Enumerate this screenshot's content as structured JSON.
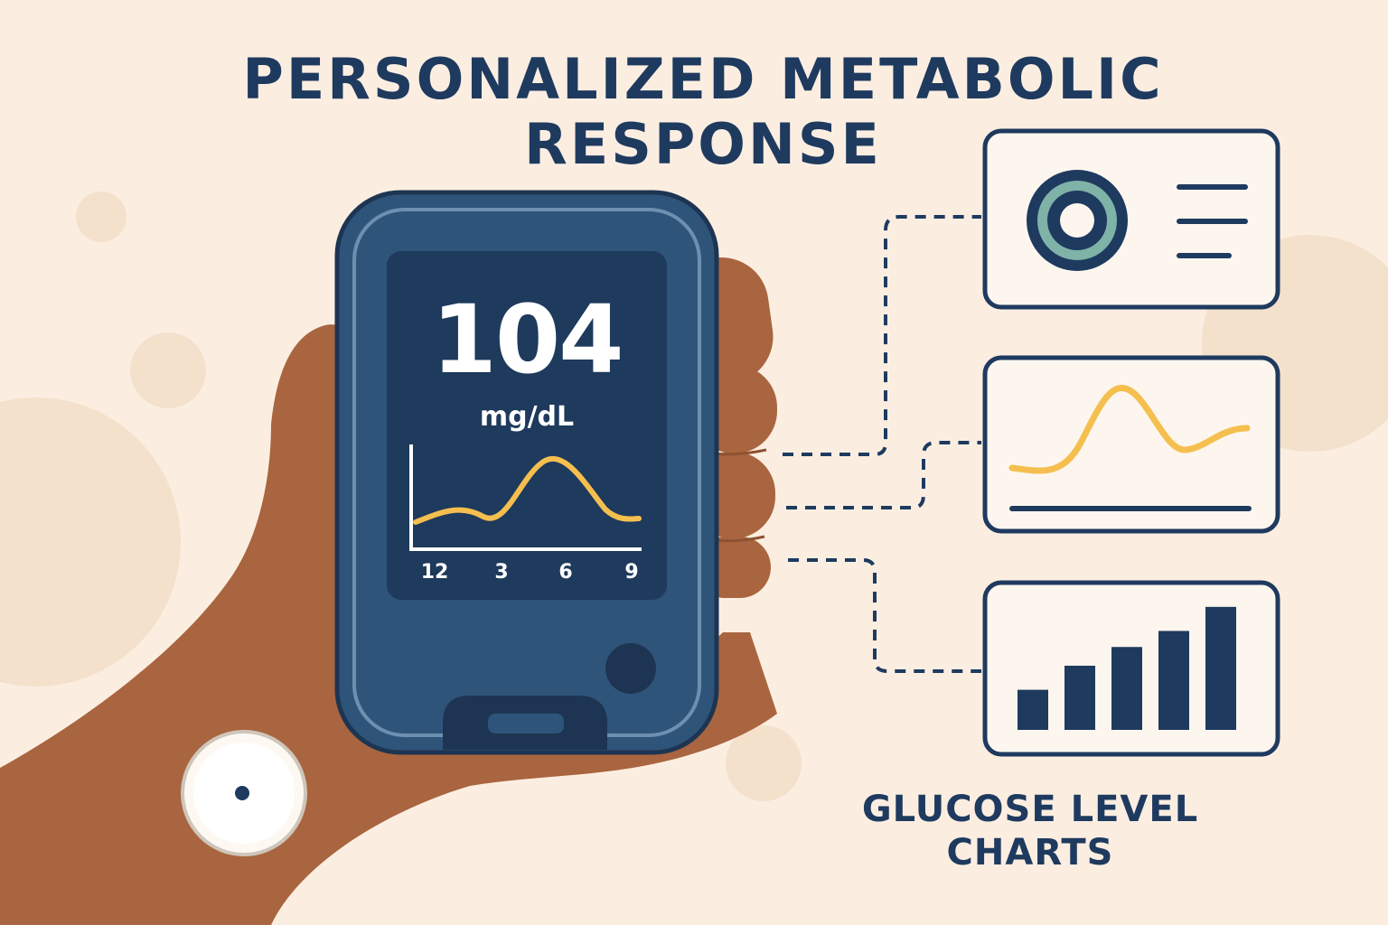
{
  "title": {
    "line1": "PERSONALIZED METABOLIC",
    "line2": "RESPONSE"
  },
  "meter": {
    "reading": "104",
    "unit": "mg/dL",
    "x_ticks": [
      "12",
      "3",
      "6",
      "9"
    ]
  },
  "caption": {
    "line1": "GLUCOSE LEVEL",
    "line2": "CHARTS"
  },
  "colors": {
    "background": "#fbeee1",
    "navy": "#1f3a5f",
    "meter_body": "#2f5479",
    "meter_screen": "#1e3a5c",
    "curve": "#f5bf4f",
    "teal": "#7fb3a8",
    "skin": "#a9653f"
  },
  "icons": {
    "panel1": "target-ring-icon",
    "panel2": "line-curve-icon",
    "panel3": "bar-chart-icon",
    "sensor": "cgm-sensor-icon"
  },
  "bar_chart_levels": [
    0.3,
    0.48,
    0.62,
    0.74,
    0.92
  ]
}
